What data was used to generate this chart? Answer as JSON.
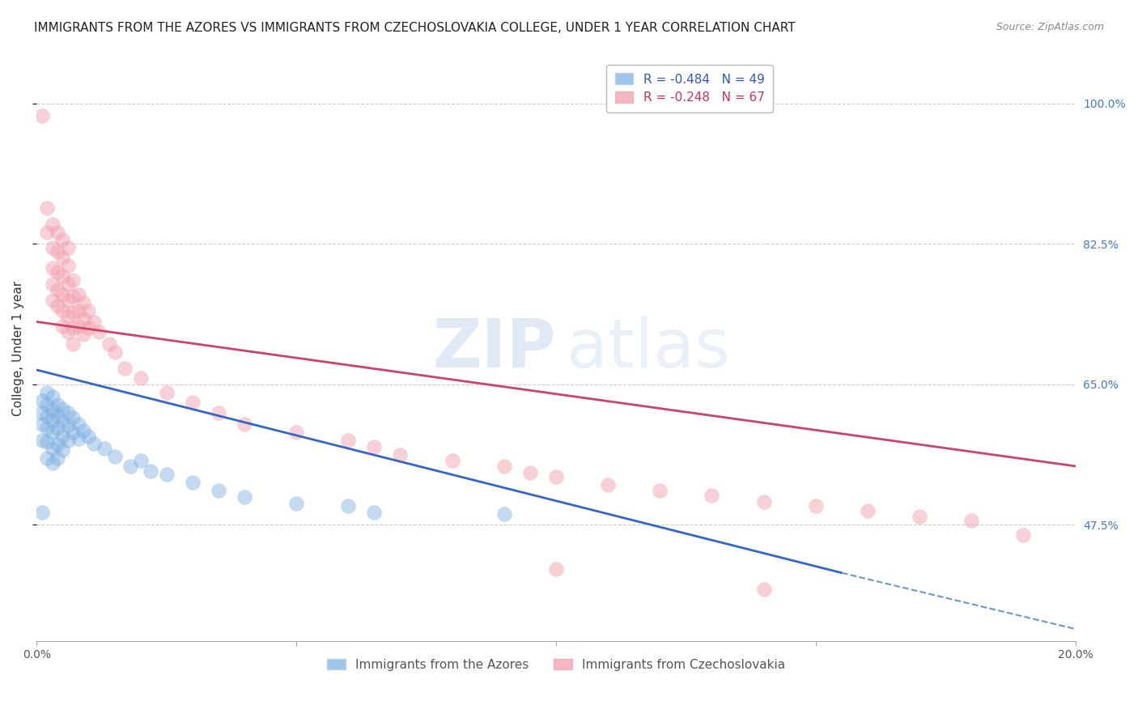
{
  "title": "IMMIGRANTS FROM THE AZORES VS IMMIGRANTS FROM CZECHOSLOVAKIA COLLEGE, UNDER 1 YEAR CORRELATION CHART",
  "source": "Source: ZipAtlas.com",
  "ylabel": "College, Under 1 year",
  "y_tick_values": [
    0.475,
    0.65,
    0.825,
    1.0
  ],
  "y_tick_labels": [
    "47.5%",
    "65.0%",
    "82.5%",
    "100.0%"
  ],
  "x_min": 0.0,
  "x_max": 0.2,
  "y_min": 0.33,
  "y_max": 1.06,
  "azores_color": "#7aade0",
  "czechoslovakia_color": "#f09aaa",
  "azores_line": {
    "x0": 0.0,
    "y0": 0.668,
    "x1": 0.155,
    "y1": 0.415
  },
  "azores_line_dash": {
    "x0": 0.155,
    "y0": 0.415,
    "x1": 0.2,
    "y1": 0.345
  },
  "czechoslovakia_line": {
    "x0": 0.0,
    "y0": 0.728,
    "x1": 0.2,
    "y1": 0.548
  },
  "azores_scatter": [
    [
      0.001,
      0.63
    ],
    [
      0.001,
      0.615
    ],
    [
      0.001,
      0.6
    ],
    [
      0.001,
      0.58
    ],
    [
      0.002,
      0.64
    ],
    [
      0.002,
      0.625
    ],
    [
      0.002,
      0.61
    ],
    [
      0.002,
      0.595
    ],
    [
      0.002,
      0.578
    ],
    [
      0.002,
      0.558
    ],
    [
      0.003,
      0.635
    ],
    [
      0.003,
      0.618
    ],
    [
      0.003,
      0.605
    ],
    [
      0.003,
      0.59
    ],
    [
      0.003,
      0.57
    ],
    [
      0.003,
      0.552
    ],
    [
      0.004,
      0.625
    ],
    [
      0.004,
      0.61
    ],
    [
      0.004,
      0.595
    ],
    [
      0.004,
      0.575
    ],
    [
      0.004,
      0.558
    ],
    [
      0.005,
      0.62
    ],
    [
      0.005,
      0.603
    ],
    [
      0.005,
      0.585
    ],
    [
      0.005,
      0.568
    ],
    [
      0.006,
      0.615
    ],
    [
      0.006,
      0.598
    ],
    [
      0.006,
      0.58
    ],
    [
      0.007,
      0.608
    ],
    [
      0.007,
      0.59
    ],
    [
      0.008,
      0.6
    ],
    [
      0.008,
      0.582
    ],
    [
      0.009,
      0.592
    ],
    [
      0.01,
      0.585
    ],
    [
      0.011,
      0.576
    ],
    [
      0.013,
      0.57
    ],
    [
      0.015,
      0.56
    ],
    [
      0.018,
      0.548
    ],
    [
      0.02,
      0.555
    ],
    [
      0.022,
      0.542
    ],
    [
      0.025,
      0.538
    ],
    [
      0.03,
      0.528
    ],
    [
      0.035,
      0.518
    ],
    [
      0.04,
      0.51
    ],
    [
      0.05,
      0.502
    ],
    [
      0.06,
      0.498
    ],
    [
      0.065,
      0.49
    ],
    [
      0.09,
      0.488
    ],
    [
      0.001,
      0.49
    ]
  ],
  "czechoslovakia_scatter": [
    [
      0.001,
      0.985
    ],
    [
      0.002,
      0.87
    ],
    [
      0.002,
      0.84
    ],
    [
      0.003,
      0.85
    ],
    [
      0.003,
      0.82
    ],
    [
      0.003,
      0.795
    ],
    [
      0.003,
      0.775
    ],
    [
      0.003,
      0.755
    ],
    [
      0.004,
      0.84
    ],
    [
      0.004,
      0.815
    ],
    [
      0.004,
      0.79
    ],
    [
      0.004,
      0.768
    ],
    [
      0.004,
      0.748
    ],
    [
      0.005,
      0.83
    ],
    [
      0.005,
      0.808
    ],
    [
      0.005,
      0.785
    ],
    [
      0.005,
      0.762
    ],
    [
      0.005,
      0.742
    ],
    [
      0.005,
      0.722
    ],
    [
      0.006,
      0.82
    ],
    [
      0.006,
      0.798
    ],
    [
      0.006,
      0.775
    ],
    [
      0.006,
      0.755
    ],
    [
      0.006,
      0.735
    ],
    [
      0.006,
      0.715
    ],
    [
      0.007,
      0.78
    ],
    [
      0.007,
      0.76
    ],
    [
      0.007,
      0.74
    ],
    [
      0.007,
      0.72
    ],
    [
      0.007,
      0.7
    ],
    [
      0.008,
      0.762
    ],
    [
      0.008,
      0.742
    ],
    [
      0.008,
      0.722
    ],
    [
      0.009,
      0.752
    ],
    [
      0.009,
      0.732
    ],
    [
      0.009,
      0.712
    ],
    [
      0.01,
      0.742
    ],
    [
      0.01,
      0.72
    ],
    [
      0.011,
      0.728
    ],
    [
      0.012,
      0.715
    ],
    [
      0.014,
      0.7
    ],
    [
      0.015,
      0.69
    ],
    [
      0.017,
      0.67
    ],
    [
      0.02,
      0.658
    ],
    [
      0.025,
      0.64
    ],
    [
      0.03,
      0.628
    ],
    [
      0.035,
      0.615
    ],
    [
      0.04,
      0.6
    ],
    [
      0.05,
      0.59
    ],
    [
      0.06,
      0.58
    ],
    [
      0.065,
      0.572
    ],
    [
      0.07,
      0.562
    ],
    [
      0.08,
      0.555
    ],
    [
      0.09,
      0.548
    ],
    [
      0.095,
      0.54
    ],
    [
      0.1,
      0.535
    ],
    [
      0.11,
      0.525
    ],
    [
      0.12,
      0.518
    ],
    [
      0.13,
      0.512
    ],
    [
      0.14,
      0.504
    ],
    [
      0.15,
      0.498
    ],
    [
      0.16,
      0.492
    ],
    [
      0.17,
      0.485
    ],
    [
      0.18,
      0.48
    ],
    [
      0.1,
      0.42
    ],
    [
      0.14,
      0.395
    ],
    [
      0.19,
      0.462
    ]
  ],
  "title_fontsize": 11,
  "axis_label_fontsize": 11,
  "tick_fontsize": 10,
  "legend_fontsize": 11
}
